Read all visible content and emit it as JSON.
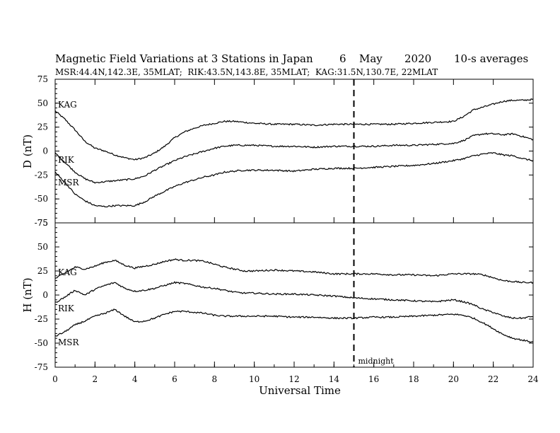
{
  "header": {
    "title": "Magnetic Field Variations at 3 Stations in Japan",
    "date_day": "6",
    "date_month": "May",
    "date_year": "2020",
    "averaging": "10-s averages",
    "stations_line": "MSR:44.4N,142.3E, 35MLAT;  RIK:43.5N,143.8E, 35MLAT;  KAG:31.5N,130.7E, 22MLAT"
  },
  "chart_data": [
    {
      "type": "line",
      "panel": "top",
      "ylabel": "D (nT)",
      "ylim": [
        -75,
        75
      ],
      "yticks": [
        -75,
        -50,
        -25,
        0,
        25,
        50,
        75
      ],
      "xlim": [
        0,
        24
      ],
      "series": [
        {
          "name": "KAG",
          "x": [
            0,
            0.5,
            1,
            1.5,
            2,
            2.5,
            3,
            3.5,
            4,
            4.5,
            5,
            5.5,
            6,
            6.5,
            7,
            7.5,
            8,
            8.5,
            9,
            9.5,
            10,
            11,
            12,
            13,
            14,
            15,
            16,
            17,
            18,
            19,
            20,
            20.5,
            21,
            21.5,
            22,
            22.5,
            23,
            23.5,
            24
          ],
          "y": [
            42,
            33,
            22,
            10,
            3,
            0,
            -4,
            -7,
            -9,
            -7,
            -2,
            5,
            14,
            20,
            24,
            27,
            29,
            31,
            31,
            30,
            29,
            28,
            28,
            27,
            28,
            28,
            28,
            28,
            29,
            30,
            31,
            36,
            43,
            46,
            49,
            52,
            53,
            53,
            54
          ]
        },
        {
          "name": "RIK",
          "x": [
            0,
            0.5,
            1,
            1.5,
            2,
            2.5,
            3,
            3.5,
            4,
            4.5,
            5,
            5.5,
            6,
            6.5,
            7,
            7.5,
            8,
            8.5,
            9,
            9.5,
            10,
            11,
            12,
            13,
            14,
            15,
            16,
            17,
            18,
            19,
            20,
            20.5,
            21,
            21.5,
            22,
            22.5,
            23,
            23.5,
            24
          ],
          "y": [
            -2,
            -12,
            -22,
            -29,
            -33,
            -32,
            -31,
            -30,
            -29,
            -26,
            -20,
            -15,
            -10,
            -6,
            -3,
            0,
            3,
            5,
            6,
            6,
            6,
            5,
            5,
            4,
            5,
            5,
            5,
            6,
            6,
            7,
            8,
            11,
            16,
            18,
            18,
            17,
            18,
            15,
            12
          ]
        },
        {
          "name": "MSR",
          "x": [
            0,
            0.5,
            1,
            1.5,
            2,
            2.5,
            3,
            3.5,
            4,
            4.5,
            5,
            5.5,
            6,
            6.5,
            7,
            7.5,
            8,
            8.5,
            9,
            9.5,
            10,
            11,
            12,
            13,
            14,
            15,
            16,
            17,
            18,
            19,
            20,
            20.5,
            21,
            21.5,
            22,
            22.5,
            23,
            23.5,
            24
          ],
          "y": [
            -22,
            -33,
            -45,
            -52,
            -57,
            -58,
            -57,
            -57,
            -57,
            -53,
            -47,
            -42,
            -37,
            -33,
            -30,
            -27,
            -25,
            -22,
            -21,
            -20,
            -20,
            -20,
            -21,
            -19,
            -18,
            -18,
            -17,
            -16,
            -15,
            -13,
            -10,
            -8,
            -5,
            -3,
            -2,
            -4,
            -5,
            -8,
            -10
          ]
        }
      ]
    },
    {
      "type": "line",
      "panel": "bottom",
      "ylabel": "H (nT)",
      "ylim": [
        -75,
        75
      ],
      "yticks": [
        -75,
        -50,
        -25,
        0,
        25,
        50,
        75
      ],
      "xlim": [
        0,
        24
      ],
      "xlabel": "Universal Time",
      "xticks": [
        0,
        2,
        4,
        6,
        8,
        10,
        12,
        14,
        16,
        18,
        20,
        22,
        24
      ],
      "series": [
        {
          "name": "KAG",
          "x": [
            0,
            0.5,
            1,
            1.5,
            2,
            2.5,
            3,
            3.5,
            4,
            4.5,
            5,
            5.5,
            6,
            6.5,
            7,
            7.5,
            8,
            8.5,
            9,
            9.5,
            10,
            11,
            12,
            13,
            14,
            15,
            16,
            17,
            18,
            19,
            20,
            20.5,
            21,
            21.5,
            22,
            22.5,
            23,
            23.5,
            24
          ],
          "y": [
            17,
            23,
            29,
            27,
            30,
            34,
            36,
            31,
            28,
            30,
            32,
            35,
            37,
            36,
            36,
            35,
            32,
            29,
            27,
            25,
            25,
            26,
            25,
            24,
            22,
            22,
            22,
            21,
            21,
            20,
            22,
            22,
            22,
            21,
            18,
            15,
            14,
            13,
            13
          ]
        },
        {
          "name": "RIK",
          "x": [
            0,
            0.5,
            1,
            1.5,
            2,
            2.5,
            3,
            3.5,
            4,
            4.5,
            5,
            5.5,
            6,
            6.5,
            7,
            7.5,
            8,
            8.5,
            9,
            9.5,
            10,
            11,
            12,
            13,
            14,
            15,
            16,
            17,
            18,
            19,
            20,
            20.5,
            21,
            21.5,
            22,
            22.5,
            23,
            23.5,
            24
          ],
          "y": [
            -8,
            -2,
            5,
            0,
            6,
            10,
            13,
            7,
            4,
            5,
            7,
            10,
            13,
            12,
            10,
            8,
            7,
            5,
            3,
            2,
            2,
            1,
            1,
            0,
            -1,
            -3,
            -4,
            -5,
            -6,
            -7,
            -5,
            -7,
            -10,
            -15,
            -18,
            -22,
            -24,
            -24,
            -22
          ]
        },
        {
          "name": "MSR",
          "x": [
            0,
            0.5,
            1,
            1.5,
            2,
            2.5,
            3,
            3.5,
            4,
            4.5,
            5,
            5.5,
            6,
            6.5,
            7,
            7.5,
            8,
            8.5,
            9,
            9.5,
            10,
            11,
            12,
            13,
            14,
            15,
            16,
            17,
            18,
            19,
            20,
            20.5,
            21,
            21.5,
            22,
            22.5,
            23,
            23.5,
            24
          ],
          "y": [
            -43,
            -38,
            -31,
            -27,
            -22,
            -19,
            -15,
            -22,
            -28,
            -27,
            -24,
            -20,
            -17,
            -17,
            -18,
            -19,
            -21,
            -22,
            -22,
            -22,
            -22,
            -22,
            -23,
            -23,
            -24,
            -24,
            -23,
            -23,
            -22,
            -21,
            -20,
            -21,
            -24,
            -29,
            -35,
            -41,
            -45,
            -47,
            -49
          ]
        }
      ]
    }
  ],
  "annotations": {
    "midnight_label": "midnight",
    "midnight_x": 15
  }
}
